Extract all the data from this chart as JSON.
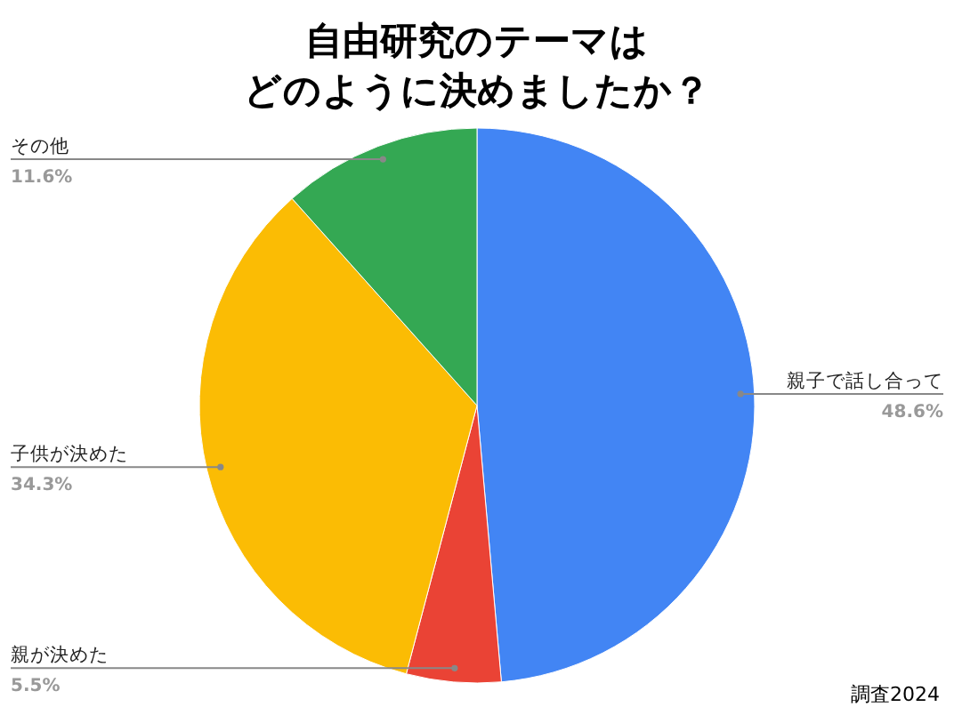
{
  "chart_data": {
    "type": "pie",
    "title": "自由研究のテーマはどのように決めましたか？",
    "categories": [
      "親子で話し合って",
      "親が決めた",
      "子供が決めた",
      "その他"
    ],
    "values": [
      48.6,
      5.5,
      34.3,
      11.6
    ],
    "value_labels": [
      "48.6%",
      "5.5%",
      "34.3%",
      "11.6%"
    ],
    "colors": [
      "#4285f4",
      "#ea4335",
      "#fbbc04",
      "#34a853"
    ],
    "legend": false,
    "annotations": [
      "調査2024"
    ]
  }
}
